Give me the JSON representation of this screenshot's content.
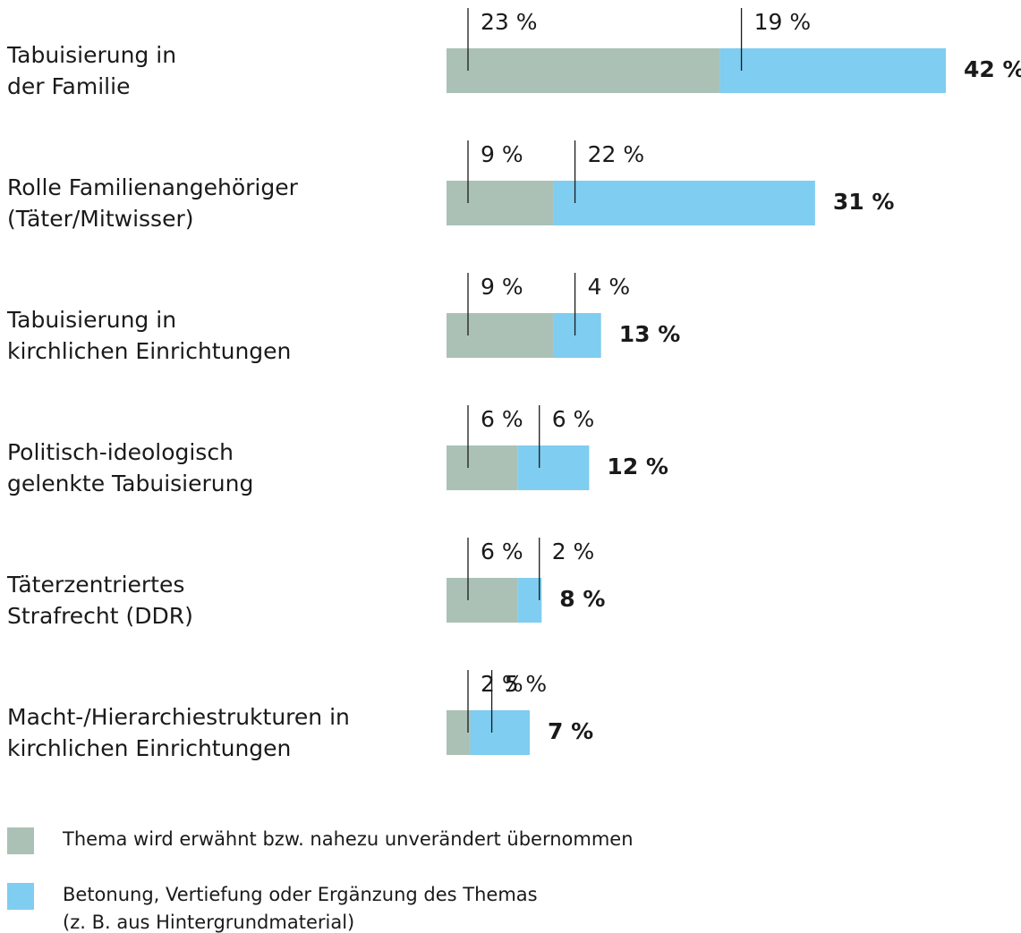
{
  "chart_data": {
    "type": "bar",
    "orientation": "horizontal",
    "stacked": true,
    "categories": [
      "Tabuisierung in\nder Familie",
      "Rolle Familienangehöriger\n(Täter/Mitwisser)",
      "Tabuisierung in\nkirchlichen Einrichtungen",
      "Politisch-ideologisch\ngelenkte Tabuisierung",
      "Täterzentriertes\nStrafrecht (DDR)",
      "Macht-/Hierarchiestrukturen in\nkirchlichen Einrichtungen"
    ],
    "series": [
      {
        "name": "Thema wird erwähnt bzw. nahezu unverändert übernommen",
        "color": "#abc1b5",
        "values": [
          23,
          9,
          9,
          6,
          6,
          2
        ],
        "value_labels": [
          "23 %",
          "9 %",
          "9 %",
          "6 %",
          "6 %",
          "2 %"
        ]
      },
      {
        "name": "Betonung, Vertiefung oder Ergänzung des Themas\n(z. B. aus Hintergrundmaterial)",
        "color": "#7fcdf0",
        "values": [
          19,
          22,
          4,
          6,
          2,
          5
        ],
        "value_labels": [
          "19 %",
          "22 %",
          "4 %",
          "6 %",
          "2 %",
          "5 %"
        ]
      }
    ],
    "totals": [
      42,
      31,
      13,
      12,
      8,
      7
    ],
    "total_labels": [
      "42 %",
      "31 %",
      "13 %",
      "12 %",
      "8 %",
      "7 %"
    ]
  }
}
